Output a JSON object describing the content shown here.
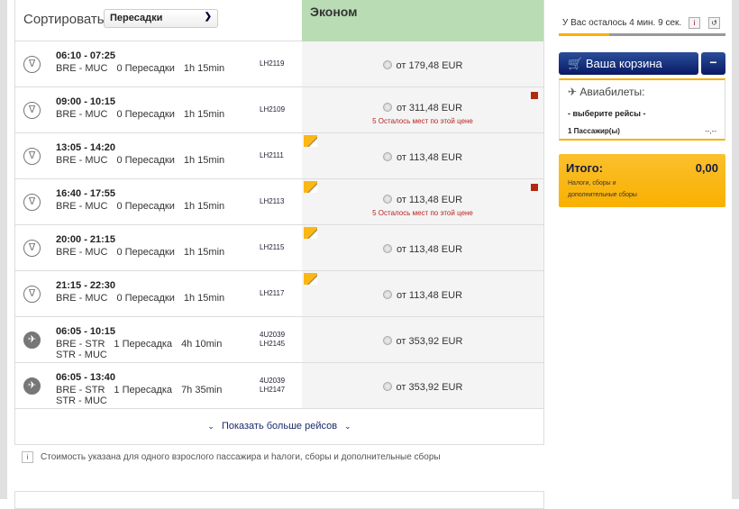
{
  "sort": {
    "label": "Сортировать",
    "selected": "Пересадки"
  },
  "fare_column": "Эконом",
  "flights": [
    {
      "time": "06:10 - 07:25",
      "route": "BRE - MUC",
      "stops": "0 Пересадки",
      "duration": "1h 15min",
      "flight_nums": [
        "LH2119"
      ],
      "price": "от 179,48 EUR",
      "icon": "lufthansa-icon"
    },
    {
      "time": "09:00 - 10:15",
      "route": "BRE - MUC",
      "stops": "0 Пересадки",
      "duration": "1h 15min",
      "flight_nums": [
        "LH2109"
      ],
      "price": "от 311,48 EUR",
      "seats": "5 Осталось мест по этой цене",
      "flag": true,
      "icon": "lufthansa-icon"
    },
    {
      "time": "13:05 - 14:20",
      "route": "BRE - MUC",
      "stops": "0 Пересадки",
      "duration": "1h 15min",
      "flight_nums": [
        "LH2111"
      ],
      "price": "от 113,48 EUR",
      "corner": true,
      "icon": "lufthansa-icon"
    },
    {
      "time": "16:40 - 17:55",
      "route": "BRE - MUC",
      "stops": "0 Пересадки",
      "duration": "1h 15min",
      "flight_nums": [
        "LH2113"
      ],
      "price": "от 113,48 EUR",
      "seats": "5 Осталось мест по этой цене",
      "flag": true,
      "corner": true,
      "icon": "lufthansa-icon"
    },
    {
      "time": "20:00 - 21:15",
      "route": "BRE - MUC",
      "stops": "0 Пересадки",
      "duration": "1h 15min",
      "flight_nums": [
        "LH2115"
      ],
      "price": "от 113,48 EUR",
      "corner": true,
      "icon": "lufthansa-icon"
    },
    {
      "time": "21:15 - 22:30",
      "route": "BRE - MUC",
      "stops": "0 Пересадки",
      "duration": "1h 15min",
      "flight_nums": [
        "LH2117"
      ],
      "price": "от 113,48 EUR",
      "corner": true,
      "icon": "lufthansa-icon"
    },
    {
      "time": "06:05 - 10:15",
      "route": "BRE - STR",
      "route2": "STR - MUC",
      "stops": "1 Пересадка",
      "duration": "4h 10min",
      "flight_nums": [
        "4U2039",
        "LH2145"
      ],
      "price": "от 353,92 EUR",
      "icon": "plane-icon"
    },
    {
      "time": "06:05 - 13:40",
      "route": "BRE - STR",
      "route2": "STR - MUC",
      "stops": "1 Пересадка",
      "duration": "7h 35min",
      "flight_nums": [
        "4U2039",
        "LH2147"
      ],
      "price": "от 353,92 EUR",
      "icon": "plane-icon"
    }
  ],
  "show_more": "Показать больше рейсов",
  "note": "Стоимость указана для одного взрослого пассажира и hалоги, сборы и дополнительные сборы",
  "sidebar": {
    "timer": "У Вас осталось 4 мин. 9 сек.",
    "timer_remaining_fraction": 0.3,
    "cart": "Ваша корзина",
    "tickets_title": "Авиабилеты:",
    "select_flights": "- выберите рейсы -",
    "passengers": "1 Пассажир(ы)",
    "passengers_price": "--,--",
    "total_label": "Итого:",
    "total_value": "0,00",
    "total_note": "Налоги, сборы и дополнительные сборы"
  },
  "colors": {
    "accent": "#f9b000",
    "brand": "#0a1a66",
    "fare_header": "#b9dcb4",
    "seats_warning": "#b22222"
  }
}
